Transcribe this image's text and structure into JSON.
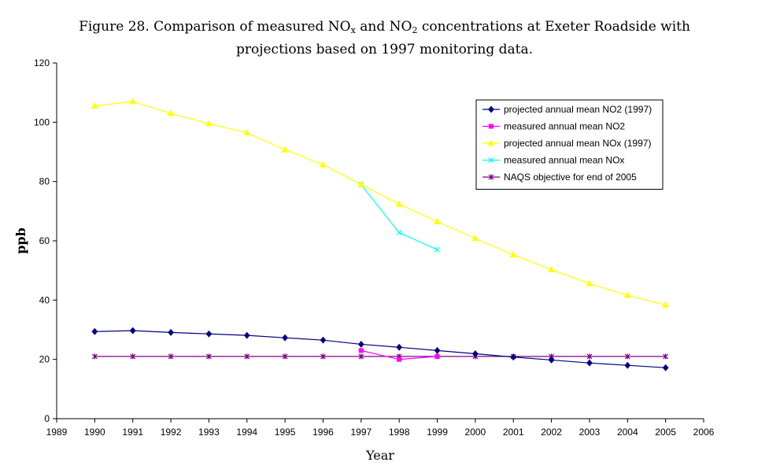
{
  "chart_data": {
    "type": "line",
    "title_parts": {
      "a": "Figure 28. Comparison of measured NO",
      "a_sub": "x",
      "b": " and NO",
      "b_sub": "2",
      "c": " concentrations at Exeter Roadside with",
      "line2": "projections based on 1997 monitoring data."
    },
    "xlabel": "Year",
    "ylabel": "ppb",
    "xlim": [
      1989,
      2006
    ],
    "ylim": [
      0,
      120
    ],
    "xticks": [
      1989,
      1990,
      1991,
      1992,
      1993,
      1994,
      1995,
      1996,
      1997,
      1998,
      1999,
      2000,
      2001,
      2002,
      2003,
      2004,
      2005,
      2006
    ],
    "yticks": [
      0,
      20,
      40,
      60,
      80,
      100,
      120
    ],
    "grid": false,
    "legend_position": "top-right",
    "series": [
      {
        "name": "projected annual mean NO2 (1997)",
        "color": "#000080",
        "marker": "diamond",
        "x": [
          1990,
          1991,
          1992,
          1993,
          1994,
          1995,
          1996,
          1997,
          1998,
          1999,
          2000,
          2001,
          2002,
          2003,
          2004,
          2005
        ],
        "y": [
          29.4,
          29.7,
          29.1,
          28.6,
          28.1,
          27.3,
          26.5,
          25.1,
          24.1,
          23.0,
          21.9,
          20.8,
          19.8,
          18.8,
          18.0,
          17.2
        ]
      },
      {
        "name": "measured annual mean NO2",
        "color": "#ff00ff",
        "marker": "square",
        "x": [
          1997,
          1998,
          1999
        ],
        "y": [
          23.0,
          20.0,
          21.0
        ]
      },
      {
        "name": "projected annual mean NOx (1997)",
        "color": "#ffff00",
        "marker": "triangle",
        "x": [
          1990,
          1991,
          1992,
          1993,
          1994,
          1995,
          1996,
          1997,
          1998,
          1999,
          2000,
          2001,
          2002,
          2003,
          2004,
          2005
        ],
        "y": [
          105.5,
          107.0,
          103.0,
          99.5,
          96.5,
          90.7,
          85.7,
          79.0,
          72.4,
          66.5,
          60.8,
          55.3,
          50.3,
          45.6,
          41.6,
          38.4
        ]
      },
      {
        "name": "measured annual mean NOx",
        "color": "#00ffff",
        "marker": "x",
        "x": [
          1997,
          1998,
          1999
        ],
        "y": [
          79.0,
          62.8,
          57.0
        ]
      },
      {
        "name": "NAQS objective for end of 2005",
        "color": "#800080",
        "marker": "star",
        "x": [
          1990,
          1991,
          1992,
          1993,
          1994,
          1995,
          1996,
          1997,
          1998,
          1999,
          2000,
          2001,
          2002,
          2003,
          2004,
          2005
        ],
        "y": [
          21,
          21,
          21,
          21,
          21,
          21,
          21,
          21,
          21,
          21,
          21,
          21,
          21,
          21,
          21,
          21
        ]
      }
    ]
  }
}
